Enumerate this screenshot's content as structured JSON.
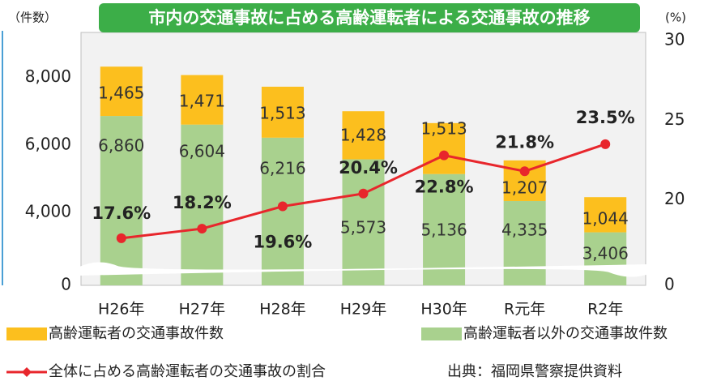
{
  "chart_data": {
    "type": "bar-line",
    "title": "市内の交通事故に占める高齢運転者による交通事故の推移",
    "y_label": "（件数）",
    "y2_label": "(%)",
    "source": "出典：福岡県警察提供資料",
    "categories": [
      "H26年",
      "H27年",
      "H28年",
      "H29年",
      "H30年",
      "R元年",
      "R2年"
    ],
    "series": [
      {
        "name": "高齢運転者以外の交通事故件数",
        "color": "#a9d18e",
        "stack": true,
        "values": [
          6860,
          6604,
          6216,
          5573,
          5136,
          4335,
          3406
        ],
        "value_labels": [
          "6,860",
          "6,604",
          "6,216",
          "5,573",
          "5,136",
          "4,335",
          "3,406"
        ]
      },
      {
        "name": "高齢運転者の交通事故件数",
        "color": "#fcbf1e",
        "stack": true,
        "values": [
          1465,
          1471,
          1513,
          1428,
          1513,
          1207,
          1044
        ],
        "value_labels": [
          "1,465",
          "1,471",
          "1,513",
          "1,428",
          "1,513",
          "1,207",
          "1,044"
        ]
      },
      {
        "name": "全体に占める高齢運転者の交通事故の割合",
        "color": "#e8262c",
        "axis": "y2",
        "kind": "line",
        "values": [
          17.6,
          18.2,
          19.6,
          20.4,
          22.8,
          21.8,
          23.5
        ],
        "value_labels": [
          "17.6%",
          "18.2%",
          "19.6%",
          "20.4%",
          "22.8%",
          "21.8%",
          "23.5%"
        ]
      }
    ],
    "ylim": [
      0,
      9100
    ],
    "ybreak": [
      0,
      2000
    ],
    "yticks": [
      0,
      {
        "value": 4000,
        "label": "4,000"
      },
      {
        "value": 6000,
        "label": "6,000"
      },
      {
        "value": 8000,
        "label": "8,000"
      }
    ],
    "y2lim": [
      0,
      30
    ],
    "y2break": [
      0,
      15
    ],
    "y2ticks": [
      0,
      20,
      25,
      30
    ]
  }
}
